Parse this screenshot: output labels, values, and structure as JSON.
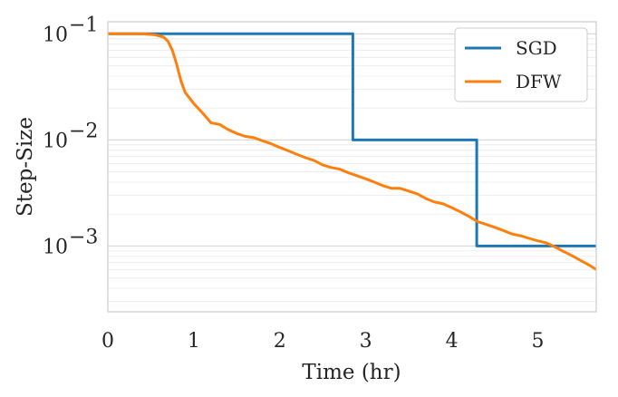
{
  "chart_data": {
    "type": "line",
    "xlabel": "Time (hr)",
    "ylabel": "Step-Size",
    "xlim": [
      0,
      5.68
    ],
    "ylim": [
      0.00024,
      0.13
    ],
    "yscale": "log",
    "grid": "horizontal-major-and-minor",
    "legend_position": "top-right",
    "x_ticks": [
      "0",
      "1",
      "2",
      "3",
      "4",
      "5"
    ],
    "y_ticks": [
      {
        "base": "10",
        "exp": "−1",
        "value": 0.1
      },
      {
        "base": "10",
        "exp": "−2",
        "value": 0.01
      },
      {
        "base": "10",
        "exp": "−3",
        "value": 0.001
      }
    ],
    "series": [
      {
        "name": "SGD",
        "color": "#1f77b4",
        "x": [
          0,
          2.85,
          2.85,
          4.29,
          4.29,
          5.68
        ],
        "y": [
          0.1,
          0.1,
          0.01,
          0.01,
          0.001,
          0.001
        ]
      },
      {
        "name": "DFW",
        "color": "#ff7f0e",
        "x": [
          0,
          0.4,
          0.55,
          0.65,
          0.7,
          0.75,
          0.8,
          0.85,
          0.9,
          1.0,
          1.1,
          1.2,
          1.3,
          1.4,
          1.5,
          1.6,
          1.7,
          1.8,
          1.9,
          2.0,
          2.1,
          2.2,
          2.3,
          2.4,
          2.5,
          2.6,
          2.7,
          2.8,
          2.9,
          3.0,
          3.1,
          3.2,
          3.3,
          3.4,
          3.5,
          3.6,
          3.7,
          3.8,
          3.9,
          4.0,
          4.1,
          4.2,
          4.3,
          4.4,
          4.5,
          4.6,
          4.7,
          4.8,
          4.9,
          5.0,
          5.1,
          5.2,
          5.3,
          5.4,
          5.5,
          5.6,
          5.68
        ],
        "y": [
          0.1,
          0.1,
          0.098,
          0.093,
          0.085,
          0.07,
          0.052,
          0.036,
          0.028,
          0.022,
          0.018,
          0.0145,
          0.014,
          0.0125,
          0.0115,
          0.0108,
          0.0105,
          0.0098,
          0.0092,
          0.0085,
          0.0079,
          0.0073,
          0.0068,
          0.0064,
          0.0058,
          0.0055,
          0.0053,
          0.0049,
          0.0046,
          0.0043,
          0.004,
          0.0037,
          0.0035,
          0.0035,
          0.0033,
          0.0031,
          0.0028,
          0.0026,
          0.0025,
          0.0023,
          0.0021,
          0.0019,
          0.0017,
          0.0016,
          0.0015,
          0.0014,
          0.0013,
          0.00125,
          0.00118,
          0.00112,
          0.00107,
          0.00098,
          0.00089,
          0.00081,
          0.00073,
          0.00066,
          0.0006
        ]
      }
    ]
  }
}
